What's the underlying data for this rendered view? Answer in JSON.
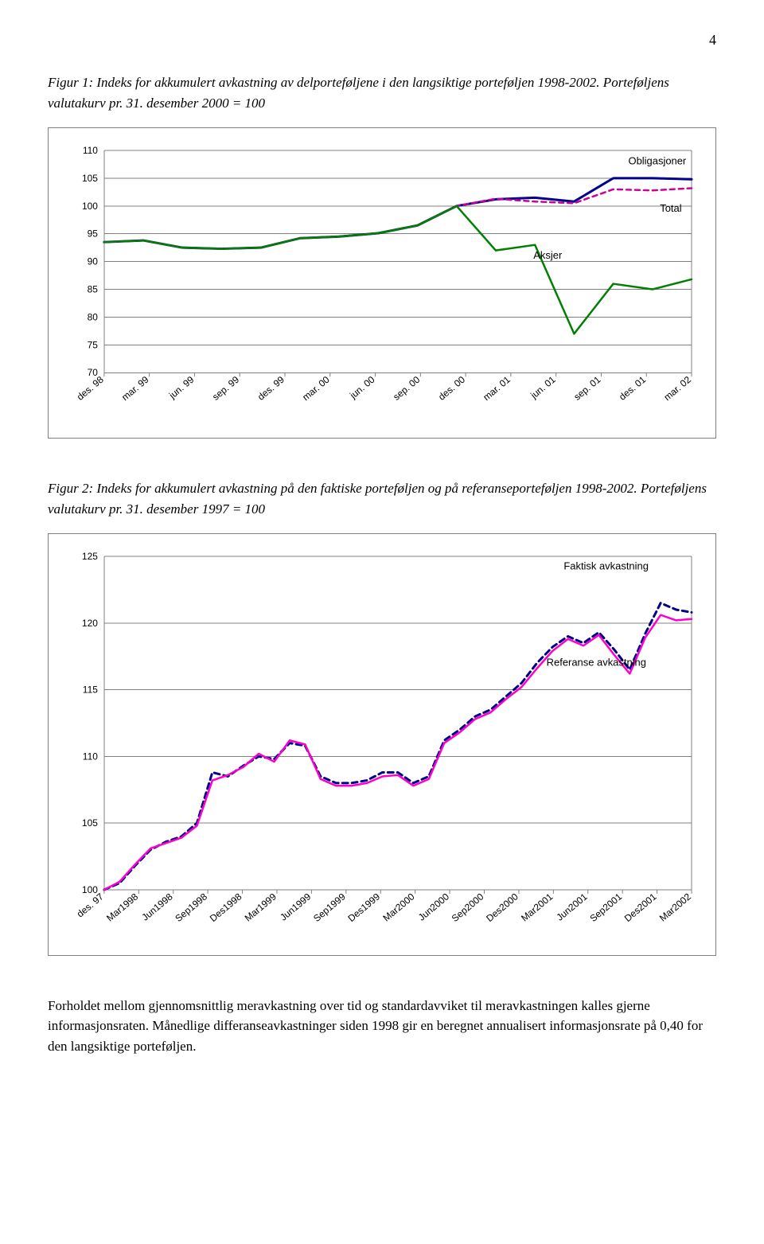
{
  "page_number": "4",
  "figure1": {
    "caption": "Figur 1: Indeks for akkumulert avkastning av delporteføljene i den langsiktige porteføljen 1998-2002. Porteføljens valutakurv pr. 31. desember 2000 = 100",
    "type": "line",
    "x_labels": [
      "des. 98",
      "mar. 99",
      "jun. 99",
      "sep. 99",
      "des. 99",
      "mar. 00",
      "jun. 00",
      "sep. 00",
      "des. 00",
      "mar. 01",
      "jun. 01",
      "sep. 01",
      "des. 01",
      "mar. 02"
    ],
    "ylim": [
      70,
      110
    ],
    "ytick_step": 5,
    "yticks": [
      70,
      75,
      80,
      85,
      90,
      95,
      100,
      105,
      110
    ],
    "grid_color": "#808080",
    "grid_width": 1,
    "background_color": "#ffffff",
    "axis_fontsize": 12,
    "label_fontsize": 13,
    "series": [
      {
        "name_key": "figure1.series.0.name",
        "name": "Obligasjoner",
        "color": "#00008b",
        "width": 3,
        "dash": "none",
        "values": [
          93.5,
          93.8,
          92.5,
          92.3,
          92.5,
          94.2,
          94.5,
          95.1,
          96.5,
          100.0,
          101.2,
          101.5,
          100.8,
          105.0,
          105.0,
          104.8
        ]
      },
      {
        "name_key": "figure1.series.1.name",
        "name": "Total",
        "color": "#cc0099",
        "width": 2.5,
        "dash": "6,5",
        "values": [
          93.5,
          93.8,
          92.5,
          92.3,
          92.5,
          94.2,
          94.5,
          95.1,
          96.5,
          100.0,
          101.3,
          100.8,
          100.5,
          103.0,
          102.8,
          103.2
        ]
      },
      {
        "name_key": "figure1.series.2.name",
        "name": "Aksjer",
        "color": "#008000",
        "width": 2.5,
        "dash": "none",
        "values": [
          93.5,
          93.8,
          92.5,
          92.3,
          92.5,
          94.2,
          94.5,
          95.1,
          96.5,
          100.0,
          92.0,
          93.0,
          77.0,
          86.0,
          85.0,
          86.8
        ]
      }
    ],
    "series_label_positions": {
      "Obligasjoner": {
        "xi": 11.6,
        "yv": 107.5
      },
      "Total": {
        "xi": 12.3,
        "yv": 99
      },
      "Aksjer": {
        "xi": 9.5,
        "yv": 90.5
      }
    }
  },
  "figure2": {
    "caption": "Figur 2: Indeks for akkumulert avkastning på den faktiske porteføljen og på referanseporteføljen 1998-2002. Porteføljens valutakurv pr. 31. desember 1997 = 100",
    "type": "line",
    "x_labels": [
      "des. 97",
      "Mar1998",
      "Jun1998",
      "Sep1998",
      "Des1998",
      "Mar1999",
      "Jun1999",
      "Sep1999",
      "Des1999",
      "Mar2000",
      "Jun2000",
      "Sep2000",
      "Des2000",
      "Mar2001",
      "Jun2001",
      "Sep2001",
      "Des2001",
      "Mar2002"
    ],
    "ylim": [
      100,
      125
    ],
    "ytick_step": 5,
    "yticks": [
      100,
      105,
      110,
      115,
      120,
      125
    ],
    "grid_color": "#808080",
    "grid_width": 1,
    "background_color": "#ffffff",
    "axis_fontsize": 12,
    "label_fontsize": 13,
    "series": [
      {
        "name_key": "figure2.series.0.name",
        "name": "Faktisk avkastning",
        "color": "#00008b",
        "width": 3,
        "dash": "7,5",
        "values": [
          100.0,
          100.5,
          101.8,
          103.0,
          103.6,
          104.0,
          105.0,
          108.8,
          108.5,
          109.3,
          110.0,
          109.8,
          111.0,
          110.8,
          108.5,
          108.0,
          108.0,
          108.2,
          108.8,
          108.8,
          108.0,
          108.5,
          111.2,
          112.0,
          113.0,
          113.5,
          114.5,
          115.5,
          117.0,
          118.2,
          119.0,
          118.5,
          119.3,
          118.0,
          116.5,
          119.2,
          121.5,
          121.0,
          120.8
        ]
      },
      {
        "name_key": "figure2.series.1.name",
        "name": "Referanse avkastning",
        "color": "#ff00cc",
        "width": 2.5,
        "dash": "none",
        "values": [
          100.0,
          100.6,
          101.9,
          103.1,
          103.5,
          103.9,
          104.8,
          108.2,
          108.6,
          109.2,
          110.2,
          109.6,
          111.2,
          110.9,
          108.3,
          107.8,
          107.8,
          108.0,
          108.5,
          108.6,
          107.8,
          108.3,
          111.0,
          111.8,
          112.8,
          113.3,
          114.3,
          115.2,
          116.6,
          117.9,
          118.8,
          118.3,
          119.1,
          117.6,
          116.2,
          118.9,
          120.6,
          120.2,
          120.3
        ]
      }
    ],
    "series_label_positions": {
      "Faktisk avkastning": {
        "xi": 13.3,
        "yv": 124
      },
      "Referanse avkastning": {
        "xi": 12.8,
        "yv": 116.8
      }
    }
  },
  "paragraph": "Forholdet mellom gjennomsnittlig meravkastning over tid og standardavviket til meravkastningen kalles gjerne informasjonsraten. Månedlige differanseavkastninger siden 1998 gir en beregnet annualisert informasjonsrate på 0,40 for den langsiktige porteføljen."
}
